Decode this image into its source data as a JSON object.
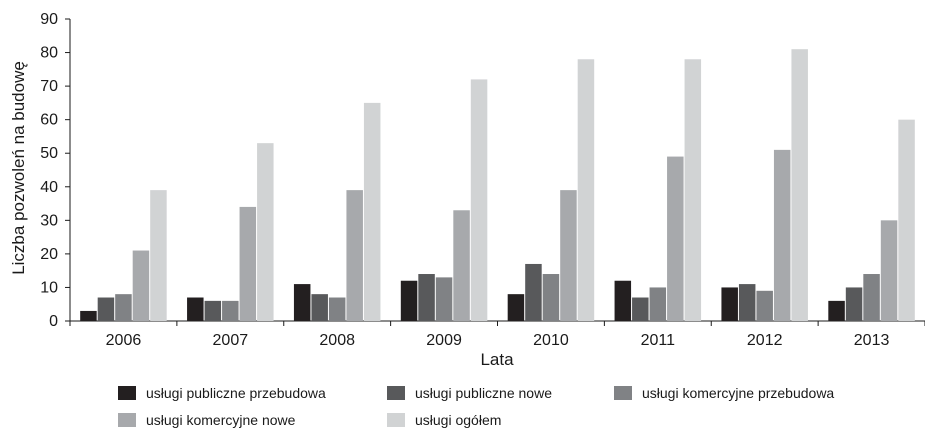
{
  "chart_data": {
    "type": "bar",
    "title": "",
    "xlabel": "Lata",
    "ylabel": "Liczba pozwoleń na budowę",
    "ylim": [
      0,
      90
    ],
    "yticks": [
      0,
      10,
      20,
      30,
      40,
      50,
      60,
      70,
      80,
      90
    ],
    "grid": false,
    "legend_position": "bottom",
    "categories": [
      "2006",
      "2007",
      "2008",
      "2009",
      "2010",
      "2011",
      "2012",
      "2013"
    ],
    "series": [
      {
        "name": "usługi publiczne przebudowa",
        "color": "#231f20",
        "values": [
          3,
          7,
          11,
          12,
          8,
          12,
          10,
          6
        ]
      },
      {
        "name": "usługi publiczne nowe",
        "color": "#58595b",
        "values": [
          7,
          6,
          8,
          14,
          17,
          7,
          11,
          10
        ]
      },
      {
        "name": "usługi komercyjne przebudowa",
        "color": "#808285",
        "values": [
          8,
          6,
          7,
          13,
          14,
          10,
          9,
          14
        ]
      },
      {
        "name": "usługi komercyjne nowe",
        "color": "#a7a9ac",
        "values": [
          21,
          34,
          39,
          33,
          39,
          49,
          51,
          30
        ]
      },
      {
        "name": "usługi ogółem",
        "color": "#d1d3d4",
        "values": [
          39,
          53,
          65,
          72,
          78,
          78,
          81,
          60
        ]
      }
    ]
  }
}
